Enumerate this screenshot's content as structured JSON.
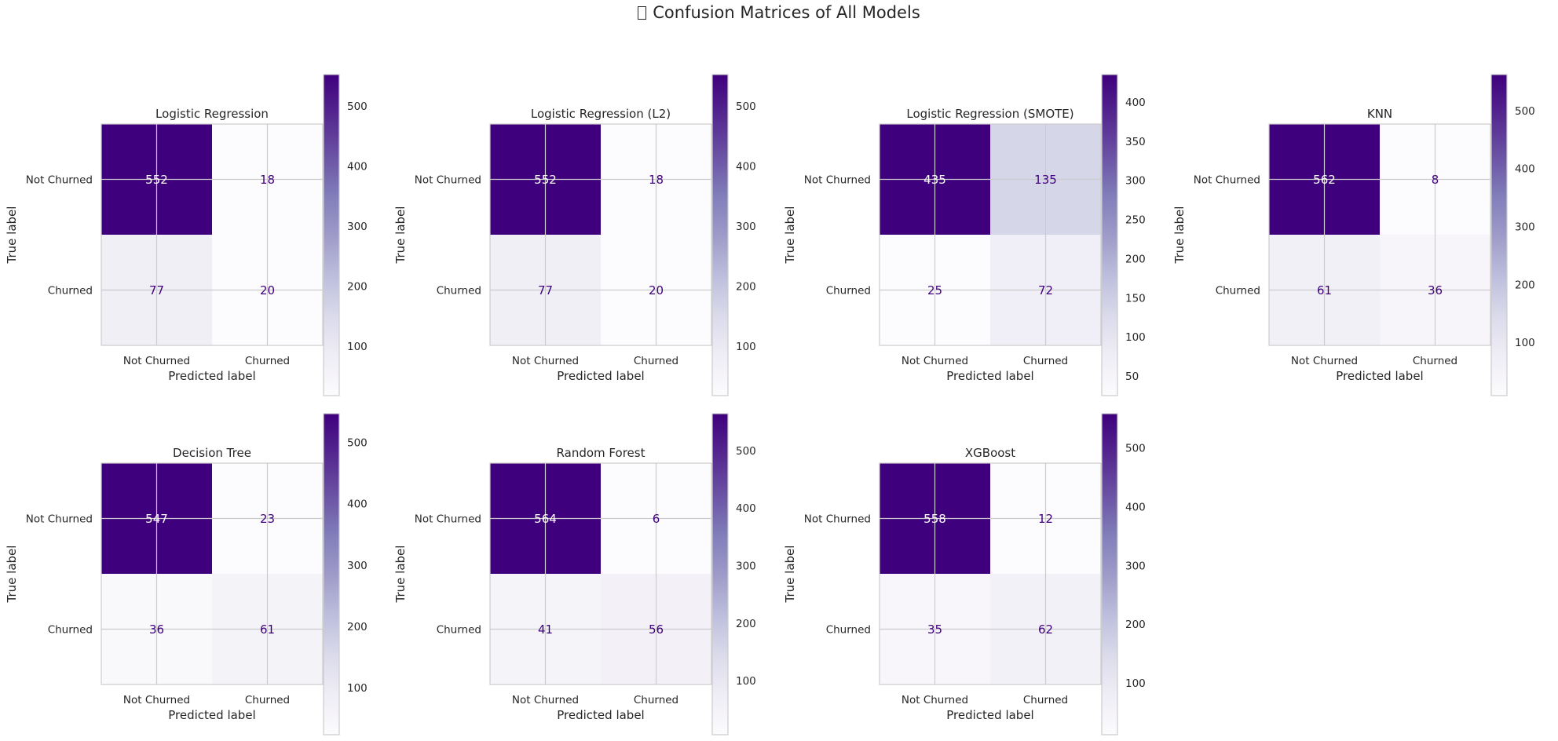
{
  "figure": {
    "title": "Confusion Matrices of All Models",
    "title_glyph": "missing-glyph-box",
    "colormap": [
      "#fcfbfd",
      "#efedf5",
      "#dadaeb",
      "#bcbddc",
      "#9e9ac8",
      "#807dba",
      "#6a51a3",
      "#54278f",
      "#3f007d"
    ]
  },
  "chart_data": [
    {
      "type": "heatmap",
      "title": "Logistic Regression",
      "xlabel": "Predicted label",
      "ylabel": "True label",
      "x_categories": [
        "Not Churned",
        "Churned"
      ],
      "y_categories": [
        "Not Churned",
        "Churned"
      ],
      "matrix": [
        [
          552,
          18
        ],
        [
          77,
          20
        ]
      ],
      "colorbar": {
        "range": [
          18,
          552
        ],
        "ticks": [
          100,
          200,
          300,
          400,
          500
        ]
      },
      "grid": true
    },
    {
      "type": "heatmap",
      "title": "Logistic Regression (L2)",
      "xlabel": "Predicted label",
      "ylabel": "True label",
      "x_categories": [
        "Not Churned",
        "Churned"
      ],
      "y_categories": [
        "Not Churned",
        "Churned"
      ],
      "matrix": [
        [
          552,
          18
        ],
        [
          77,
          20
        ]
      ],
      "colorbar": {
        "range": [
          18,
          552
        ],
        "ticks": [
          100,
          200,
          300,
          400,
          500
        ]
      },
      "grid": true
    },
    {
      "type": "heatmap",
      "title": "Logistic Regression (SMOTE)",
      "xlabel": "Predicted label",
      "ylabel": "True label",
      "x_categories": [
        "Not Churned",
        "Churned"
      ],
      "y_categories": [
        "Not Churned",
        "Churned"
      ],
      "matrix": [
        [
          435,
          135
        ],
        [
          25,
          72
        ]
      ],
      "colorbar": {
        "range": [
          25,
          435
        ],
        "ticks": [
          50,
          100,
          150,
          200,
          250,
          300,
          350,
          400
        ]
      },
      "grid": true
    },
    {
      "type": "heatmap",
      "title": "KNN",
      "xlabel": "Predicted label",
      "ylabel": "True label",
      "x_categories": [
        "Not Churned",
        "Churned"
      ],
      "y_categories": [
        "Not Churned",
        "Churned"
      ],
      "matrix": [
        [
          562,
          8
        ],
        [
          61,
          36
        ]
      ],
      "colorbar": {
        "range": [
          8,
          562
        ],
        "ticks": [
          100,
          200,
          300,
          400,
          500
        ]
      },
      "grid": true
    },
    {
      "type": "heatmap",
      "title": "Decision Tree",
      "xlabel": "Predicted label",
      "ylabel": "True label",
      "x_categories": [
        "Not Churned",
        "Churned"
      ],
      "y_categories": [
        "Not Churned",
        "Churned"
      ],
      "matrix": [
        [
          547,
          23
        ],
        [
          36,
          61
        ]
      ],
      "colorbar": {
        "range": [
          23,
          547
        ],
        "ticks": [
          100,
          200,
          300,
          400,
          500
        ]
      },
      "grid": true
    },
    {
      "type": "heatmap",
      "title": "Random Forest",
      "xlabel": "Predicted label",
      "ylabel": "True label",
      "x_categories": [
        "Not Churned",
        "Churned"
      ],
      "y_categories": [
        "Not Churned",
        "Churned"
      ],
      "matrix": [
        [
          564,
          6
        ],
        [
          41,
          56
        ]
      ],
      "colorbar": {
        "range": [
          6,
          564
        ],
        "ticks": [
          100,
          200,
          300,
          400,
          500
        ]
      },
      "grid": true
    },
    {
      "type": "heatmap",
      "title": "XGBoost",
      "xlabel": "Predicted label",
      "ylabel": "True label",
      "x_categories": [
        "Not Churned",
        "Churned"
      ],
      "y_categories": [
        "Not Churned",
        "Churned"
      ],
      "matrix": [
        [
          558,
          12
        ],
        [
          35,
          62
        ]
      ],
      "colorbar": {
        "range": [
          12,
          558
        ],
        "ticks": [
          100,
          200,
          300,
          400,
          500
        ]
      },
      "grid": true
    }
  ]
}
